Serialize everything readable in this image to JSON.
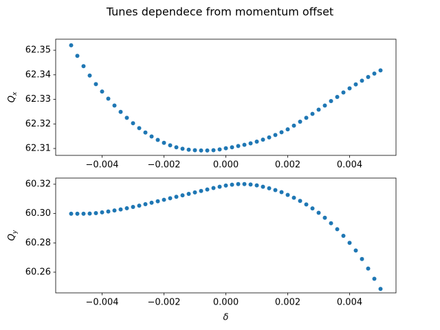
{
  "title": "Tunes dependece from momentum offset",
  "chart_data": [
    {
      "type": "scatter",
      "color": "#1f77b4",
      "ylabel": {
        "base": "Q",
        "sub": "x"
      },
      "x": [
        -0.005,
        -0.0048,
        -0.0046,
        -0.0044,
        -0.0042,
        -0.004,
        -0.0038,
        -0.0036,
        -0.0034,
        -0.0032,
        -0.003,
        -0.0028,
        -0.0026,
        -0.0024,
        -0.0022,
        -0.002,
        -0.0018,
        -0.0016,
        -0.0014,
        -0.0012,
        -0.001,
        -0.0008,
        -0.0006,
        -0.0004,
        -0.0002,
        0,
        0.0002,
        0.0004,
        0.0006,
        0.0008,
        0.001,
        0.0012,
        0.0014,
        0.0016,
        0.0018,
        0.002,
        0.0022,
        0.0024,
        0.0026,
        0.0028,
        0.003,
        0.0032,
        0.0034,
        0.0036,
        0.0038,
        0.004,
        0.0042,
        0.0044,
        0.0046,
        0.0048,
        0.005
      ],
      "values": [
        62.352,
        62.3477,
        62.3435,
        62.3397,
        62.3362,
        62.3332,
        62.3303,
        62.3275,
        62.3249,
        62.3225,
        62.3203,
        62.3183,
        62.3165,
        62.3149,
        62.3135,
        62.3123,
        62.3113,
        62.3105,
        62.3099,
        62.3095,
        62.3093,
        62.3092,
        62.3092,
        62.3093,
        62.3096,
        62.3101,
        62.3105,
        62.311,
        62.3115,
        62.3121,
        62.3128,
        62.3136,
        62.3145,
        62.3155,
        62.3166,
        62.3178,
        62.3193,
        62.3209,
        62.3225,
        62.3241,
        62.3258,
        62.3275,
        62.3293,
        62.331,
        62.3328,
        62.3345,
        62.3361,
        62.3376,
        62.3391,
        62.3405,
        62.3418
      ],
      "xlim": [
        -0.0055,
        0.0055
      ],
      "xticks": [
        {
          "value": -0.004,
          "label": "−0.004"
        },
        {
          "value": -0.002,
          "label": "−0.002"
        },
        {
          "value": 0,
          "label": "0.000"
        },
        0.002,
        0.004
      ],
      "ylim": [
        62.3072,
        62.3545
      ],
      "yticks": [
        62.31,
        62.32,
        62.33,
        62.34,
        62.35
      ]
    },
    {
      "type": "scatter",
      "color": "#1f77b4",
      "ylabel": {
        "base": "Q",
        "sub": "y"
      },
      "xlabel": "δ",
      "x": [
        -0.005,
        -0.0048,
        -0.0046,
        -0.0044,
        -0.0042,
        -0.004,
        -0.0038,
        -0.0036,
        -0.0034,
        -0.0032,
        -0.003,
        -0.0028,
        -0.0026,
        -0.0024,
        -0.0022,
        -0.002,
        -0.0018,
        -0.0016,
        -0.0014,
        -0.0012,
        -0.001,
        -0.0008,
        -0.0006,
        -0.0004,
        -0.0002,
        0,
        0.0002,
        0.0004,
        0.0006,
        0.0008,
        0.001,
        0.0012,
        0.0014,
        0.0016,
        0.0018,
        0.002,
        0.0022,
        0.0024,
        0.0026,
        0.0028,
        0.003,
        0.0032,
        0.0034,
        0.0036,
        0.0038,
        0.004,
        0.0042,
        0.0044,
        0.0046,
        0.0048,
        0.005
      ],
      "values": [
        60.2999,
        60.2999,
        60.2999,
        60.3,
        60.3003,
        60.3008,
        60.3014,
        60.3021,
        60.3028,
        60.3036,
        60.3045,
        60.3054,
        60.3064,
        60.3074,
        60.3084,
        60.3094,
        60.3104,
        60.3114,
        60.3124,
        60.3134,
        60.3144,
        60.3154,
        60.3164,
        60.3174,
        60.3183,
        60.3191,
        60.3197,
        60.3201,
        60.3201,
        60.3198,
        60.3192,
        60.3183,
        60.3172,
        60.316,
        60.3146,
        60.3127,
        60.3108,
        60.3086,
        60.3062,
        60.3035,
        60.3005,
        60.2971,
        60.2934,
        60.2893,
        60.2848,
        60.28,
        60.2748,
        60.269,
        60.2625,
        60.2555,
        60.2486
      ],
      "xlim": [
        -0.0055,
        0.0055
      ],
      "xticks": [
        {
          "value": -0.004,
          "label": "−0.004"
        },
        {
          "value": -0.002,
          "label": "−0.002"
        },
        {
          "value": 0,
          "label": "0.000"
        },
        0.002,
        0.004
      ],
      "ylim": [
        60.2459,
        60.3242
      ],
      "yticks": [
        60.26,
        60.28,
        {
          "value": 60.3,
          "label": "60.30"
        },
        60.32
      ]
    }
  ]
}
